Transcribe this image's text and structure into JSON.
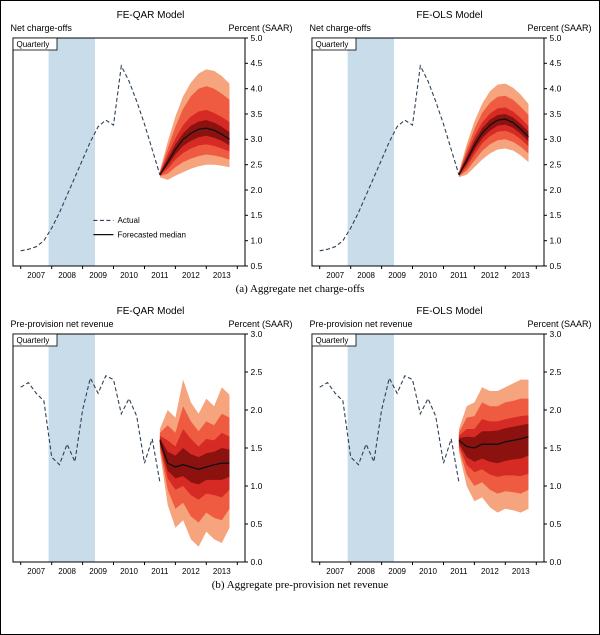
{
  "captions": {
    "a": "(a) Aggregate net charge-offs",
    "b": "(b) Aggregate pre-provision net revenue"
  },
  "colors": {
    "recession_band": "#C8DCEA",
    "fan_bands": [
      "#F6A47D",
      "#EF5B40",
      "#D52B24",
      "#8C1210"
    ],
    "actual_line": "#2E4154",
    "median_line": "#111111",
    "axis": "#000000"
  },
  "chart_data": [
    {
      "type": "line",
      "title": "FE-QAR Model",
      "left_label": "Net charge-offs",
      "right_label": "Percent (SAAR)",
      "corner_label": "Quarterly",
      "xlim": [
        2006.75,
        2014.25
      ],
      "ylim": [
        0.5,
        5.0
      ],
      "yticks": [
        "0.5",
        "1.0",
        "1.5",
        "2.0",
        "2.5",
        "3.0",
        "3.5",
        "4.0",
        "4.5",
        "5.0"
      ],
      "xticks": [
        2007,
        2008,
        2009,
        2010,
        2011,
        2012,
        2013,
        2014
      ],
      "xtick_labels": [
        "2007",
        "2008",
        "2009",
        "2010",
        "2011",
        "2012",
        "2013"
      ],
      "recession_band": [
        2007.9,
        2009.4
      ],
      "legend": {
        "actual": "Actual",
        "median": "Forecasted median"
      },
      "actual": {
        "x": [
          2007.0,
          2007.25,
          2007.5,
          2007.75,
          2008.0,
          2008.25,
          2008.5,
          2008.75,
          2009.0,
          2009.25,
          2009.5,
          2009.75,
          2010.0,
          2010.25,
          2010.5,
          2010.75,
          2011.0,
          2011.25,
          2011.5
        ],
        "y": [
          0.8,
          0.83,
          0.88,
          1.0,
          1.25,
          1.55,
          1.9,
          2.25,
          2.6,
          2.95,
          3.25,
          3.38,
          3.28,
          4.45,
          4.15,
          3.75,
          3.3,
          2.8,
          2.3
        ]
      },
      "forecast": {
        "x": [
          2011.5,
          2011.75,
          2012.0,
          2012.25,
          2012.5,
          2012.75,
          2013.0,
          2013.25,
          2013.5,
          2013.75
        ],
        "median": [
          2.3,
          2.55,
          2.8,
          3.0,
          3.12,
          3.2,
          3.22,
          3.18,
          3.1,
          3.0
        ],
        "bands": [
          {
            "lower": [
              2.25,
              2.2,
              2.28,
              2.35,
              2.42,
              2.47,
              2.5,
              2.5,
              2.48,
              2.45
            ],
            "upper": [
              2.38,
              2.95,
              3.45,
              3.85,
              4.12,
              4.3,
              4.38,
              4.35,
              4.25,
              4.1
            ]
          },
          {
            "lower": [
              2.27,
              2.32,
              2.45,
              2.55,
              2.62,
              2.67,
              2.7,
              2.68,
              2.65,
              2.6
            ],
            "upper": [
              2.36,
              2.82,
              3.25,
              3.6,
              3.85,
              4.0,
              4.05,
              4.0,
              3.9,
              3.78
            ]
          },
          {
            "lower": [
              2.28,
              2.42,
              2.6,
              2.73,
              2.82,
              2.88,
              2.9,
              2.87,
              2.82,
              2.76
            ],
            "upper": [
              2.34,
              2.7,
              3.02,
              3.28,
              3.45,
              3.55,
              3.58,
              3.52,
              3.44,
              3.34
            ]
          },
          {
            "lower": [
              2.29,
              2.49,
              2.7,
              2.87,
              2.97,
              3.04,
              3.07,
              3.03,
              2.97,
              2.88
            ],
            "upper": [
              2.32,
              2.62,
              2.9,
              3.12,
              3.27,
              3.35,
              3.38,
              3.33,
              3.25,
              3.14
            ]
          }
        ]
      }
    },
    {
      "type": "line",
      "title": "FE-OLS Model",
      "left_label": "Net charge-offs",
      "right_label": "Percent (SAAR)",
      "corner_label": "Quarterly",
      "xlim": [
        2006.75,
        2014.25
      ],
      "ylim": [
        0.5,
        5.0
      ],
      "yticks": [
        "0.5",
        "1.0",
        "1.5",
        "2.0",
        "2.5",
        "3.0",
        "3.5",
        "4.0",
        "4.5",
        "5.0"
      ],
      "xticks": [
        2007,
        2008,
        2009,
        2010,
        2011,
        2012,
        2013,
        2014
      ],
      "xtick_labels": [
        "2007",
        "2008",
        "2009",
        "2010",
        "2011",
        "2012",
        "2013"
      ],
      "recession_band": [
        2007.9,
        2009.4
      ],
      "actual": {
        "x": [
          2007.0,
          2007.25,
          2007.5,
          2007.75,
          2008.0,
          2008.25,
          2008.5,
          2008.75,
          2009.0,
          2009.25,
          2009.5,
          2009.75,
          2010.0,
          2010.25,
          2010.5,
          2010.75,
          2011.0,
          2011.25,
          2011.5
        ],
        "y": [
          0.8,
          0.83,
          0.88,
          1.0,
          1.25,
          1.55,
          1.9,
          2.25,
          2.6,
          2.95,
          3.25,
          3.38,
          3.28,
          4.45,
          4.15,
          3.75,
          3.3,
          2.8,
          2.3
        ]
      },
      "forecast": {
        "x": [
          2011.5,
          2011.75,
          2012.0,
          2012.25,
          2012.5,
          2012.75,
          2013.0,
          2013.25,
          2013.5,
          2013.75
        ],
        "median": [
          2.3,
          2.58,
          2.88,
          3.12,
          3.28,
          3.38,
          3.4,
          3.33,
          3.2,
          3.05
        ],
        "bands": [
          {
            "lower": [
              2.25,
              2.3,
              2.45,
              2.6,
              2.72,
              2.8,
              2.82,
              2.78,
              2.68,
              2.55
            ],
            "upper": [
              2.36,
              2.9,
              3.35,
              3.7,
              3.95,
              4.08,
              4.1,
              4.02,
              3.88,
              3.7
            ]
          },
          {
            "lower": [
              2.27,
              2.38,
              2.58,
              2.77,
              2.9,
              2.98,
              3.0,
              2.95,
              2.85,
              2.72
            ],
            "upper": [
              2.34,
              2.8,
              3.2,
              3.52,
              3.72,
              3.84,
              3.86,
              3.78,
              3.64,
              3.48
            ]
          },
          {
            "lower": [
              2.28,
              2.46,
              2.7,
              2.92,
              3.06,
              3.15,
              3.17,
              3.11,
              3.0,
              2.86
            ],
            "upper": [
              2.33,
              2.71,
              3.06,
              3.33,
              3.51,
              3.61,
              3.63,
              3.55,
              3.42,
              3.26
            ]
          },
          {
            "lower": [
              2.29,
              2.52,
              2.79,
              3.02,
              3.17,
              3.27,
              3.29,
              3.23,
              3.11,
              2.96
            ],
            "upper": [
              2.32,
              2.65,
              2.97,
              3.22,
              3.39,
              3.48,
              3.5,
              3.43,
              3.3,
              3.15
            ]
          }
        ]
      }
    },
    {
      "type": "line",
      "title": "FE-QAR Model",
      "left_label": "Pre-provision net revenue",
      "right_label": "Percent (SAAR)",
      "corner_label": "Quarterly",
      "xlim": [
        2006.75,
        2014.25
      ],
      "ylim": [
        0.0,
        3.0
      ],
      "yticks": [
        "0.0",
        "0.5",
        "1.0",
        "1.5",
        "2.0",
        "2.5",
        "3.0"
      ],
      "xticks": [
        2007,
        2008,
        2009,
        2010,
        2011,
        2012,
        2013,
        2014
      ],
      "xtick_labels": [
        "2007",
        "2008",
        "2009",
        "2010",
        "2011",
        "2012",
        "2013"
      ],
      "recession_band": [
        2007.9,
        2009.4
      ],
      "actual": {
        "x": [
          2007.0,
          2007.25,
          2007.5,
          2007.75,
          2008.0,
          2008.25,
          2008.5,
          2008.75,
          2009.0,
          2009.25,
          2009.5,
          2009.75,
          2010.0,
          2010.25,
          2010.5,
          2010.75,
          2011.0,
          2011.25,
          2011.5
        ],
        "y": [
          2.3,
          2.36,
          2.22,
          2.12,
          1.38,
          1.28,
          1.55,
          1.32,
          2.0,
          2.42,
          2.22,
          2.45,
          2.4,
          1.95,
          2.15,
          1.92,
          1.3,
          1.62,
          1.05
        ]
      },
      "forecast": {
        "x": [
          2011.5,
          2011.75,
          2012.0,
          2012.25,
          2012.5,
          2012.75,
          2013.0,
          2013.25,
          2013.5,
          2013.75
        ],
        "median": [
          1.6,
          1.3,
          1.25,
          1.28,
          1.25,
          1.22,
          1.25,
          1.28,
          1.3,
          1.3
        ],
        "bands": [
          {
            "lower": [
              1.45,
              0.75,
              0.45,
              0.55,
              0.3,
              0.2,
              0.4,
              0.3,
              0.25,
              0.45
            ],
            "upper": [
              1.75,
              2.0,
              1.9,
              2.4,
              2.1,
              1.95,
              2.15,
              2.05,
              2.3,
              2.2
            ]
          },
          {
            "lower": [
              1.5,
              0.95,
              0.7,
              0.78,
              0.6,
              0.52,
              0.65,
              0.58,
              0.55,
              0.7
            ],
            "upper": [
              1.7,
              1.8,
              1.7,
              2.05,
              1.85,
              1.72,
              1.85,
              1.8,
              1.95,
              1.9
            ]
          },
          {
            "lower": [
              1.53,
              1.1,
              0.95,
              1.0,
              0.88,
              0.82,
              0.9,
              0.88,
              0.85,
              0.95
            ],
            "upper": [
              1.66,
              1.6,
              1.52,
              1.75,
              1.62,
              1.52,
              1.62,
              1.6,
              1.7,
              1.65
            ]
          },
          {
            "lower": [
              1.56,
              1.2,
              1.1,
              1.13,
              1.05,
              1.02,
              1.08,
              1.08,
              1.08,
              1.12
            ],
            "upper": [
              1.63,
              1.45,
              1.4,
              1.5,
              1.42,
              1.38,
              1.43,
              1.45,
              1.5,
              1.48
            ]
          }
        ]
      }
    },
    {
      "type": "line",
      "title": "FE-OLS Model",
      "left_label": "Pre-provision net revenue",
      "right_label": "Percent (SAAR)",
      "corner_label": "Quarterly",
      "xlim": [
        2006.75,
        2014.25
      ],
      "ylim": [
        0.0,
        3.0
      ],
      "yticks": [
        "0.0",
        "0.5",
        "1.0",
        "1.5",
        "2.0",
        "2.5",
        "3.0"
      ],
      "xticks": [
        2007,
        2008,
        2009,
        2010,
        2011,
        2012,
        2013,
        2014
      ],
      "xtick_labels": [
        "2007",
        "2008",
        "2009",
        "2010",
        "2011",
        "2012",
        "2013"
      ],
      "recession_band": [
        2007.9,
        2009.4
      ],
      "actual": {
        "x": [
          2007.0,
          2007.25,
          2007.5,
          2007.75,
          2008.0,
          2008.25,
          2008.5,
          2008.75,
          2009.0,
          2009.25,
          2009.5,
          2009.75,
          2010.0,
          2010.25,
          2010.5,
          2010.75,
          2011.0,
          2011.25,
          2011.5
        ],
        "y": [
          2.3,
          2.36,
          2.22,
          2.12,
          1.38,
          1.28,
          1.55,
          1.32,
          2.0,
          2.42,
          2.22,
          2.45,
          2.4,
          1.95,
          2.15,
          1.92,
          1.3,
          1.62,
          1.05
        ]
      },
      "forecast": {
        "x": [
          2011.5,
          2011.75,
          2012.0,
          2012.25,
          2012.5,
          2012.75,
          2013.0,
          2013.25,
          2013.5,
          2013.75
        ],
        "median": [
          1.6,
          1.52,
          1.5,
          1.55,
          1.55,
          1.55,
          1.58,
          1.6,
          1.62,
          1.65
        ],
        "bands": [
          {
            "lower": [
              1.45,
              1.0,
              0.8,
              0.85,
              0.72,
              0.65,
              0.7,
              0.68,
              0.65,
              0.7
            ],
            "upper": [
              1.75,
              2.05,
              2.1,
              2.3,
              2.25,
              2.25,
              2.3,
              2.35,
              2.4,
              2.4
            ]
          },
          {
            "lower": [
              1.5,
              1.15,
              1.0,
              1.05,
              0.95,
              0.9,
              0.93,
              0.92,
              0.9,
              0.95
            ],
            "upper": [
              1.7,
              1.9,
              1.92,
              2.1,
              2.05,
              2.05,
              2.1,
              2.12,
              2.15,
              2.15
            ]
          },
          {
            "lower": [
              1.53,
              1.28,
              1.18,
              1.22,
              1.15,
              1.12,
              1.14,
              1.14,
              1.13,
              1.16
            ],
            "upper": [
              1.66,
              1.75,
              1.75,
              1.88,
              1.85,
              1.85,
              1.88,
              1.9,
              1.92,
              1.93
            ]
          },
          {
            "lower": [
              1.56,
              1.38,
              1.32,
              1.36,
              1.32,
              1.3,
              1.33,
              1.35,
              1.36,
              1.4
            ],
            "upper": [
              1.63,
              1.65,
              1.64,
              1.72,
              1.72,
              1.73,
              1.76,
              1.78,
              1.8,
              1.82
            ]
          }
        ]
      }
    }
  ]
}
